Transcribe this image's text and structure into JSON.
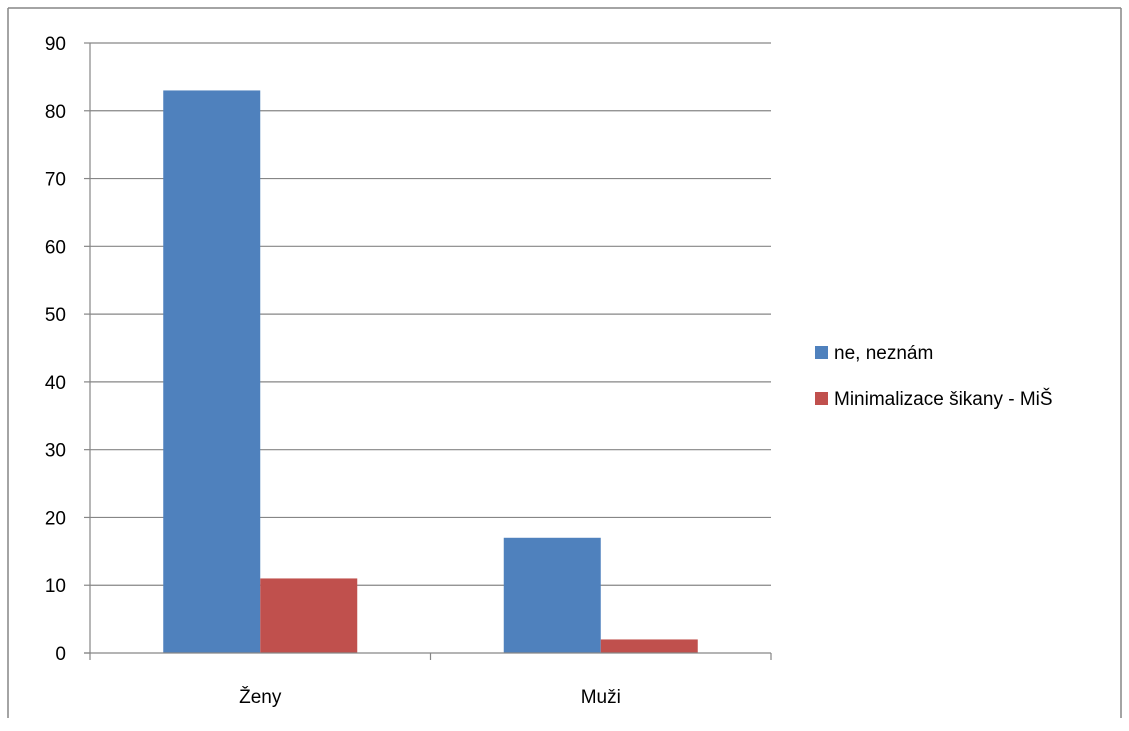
{
  "chart_data": {
    "type": "bar",
    "title": "",
    "xlabel": "",
    "ylabel": "",
    "categories": [
      "Ženy",
      "Muži"
    ],
    "series": [
      {
        "name": "ne, neznám",
        "values": [
          83,
          17
        ],
        "color": "#4F81BD"
      },
      {
        "name": "Minimalizace šikany - MiŠ",
        "values": [
          11,
          2
        ],
        "color": "#C0504D"
      }
    ],
    "ylim": [
      0,
      90
    ],
    "yticks": [
      0,
      10,
      20,
      30,
      40,
      50,
      60,
      70,
      80,
      90
    ],
    "grid": true,
    "legend": "right"
  }
}
